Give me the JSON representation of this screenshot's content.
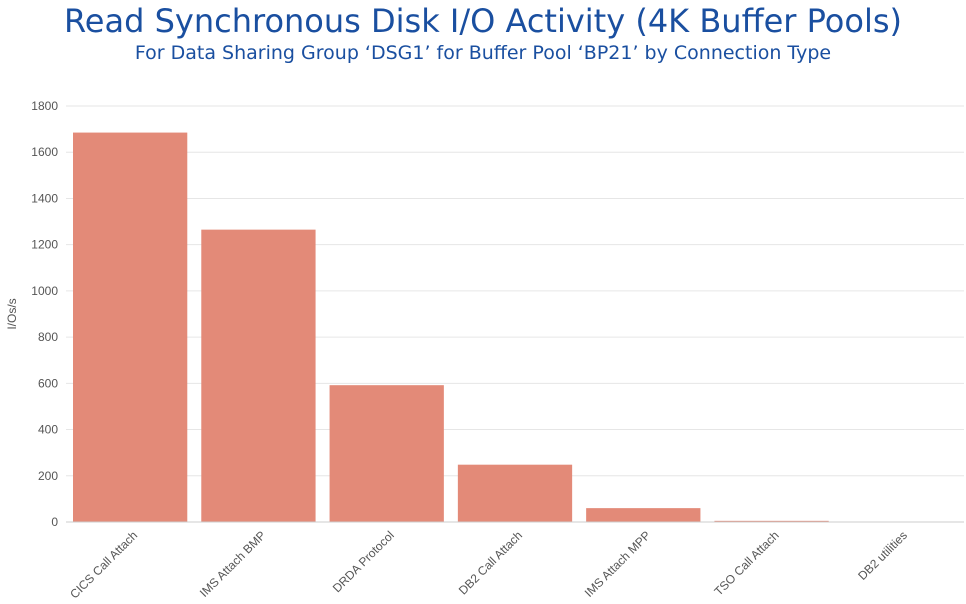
{
  "title": "Read Synchronous Disk I/O Activity (4K Buffer Pools)",
  "subtitle": "For Data Sharing Group ‘DSG1’ for Buffer Pool ‘BP21’ by Connection Type",
  "chart_data": {
    "type": "bar",
    "title": "Read Synchronous Disk I/O Activity (4K Buffer Pools)",
    "subtitle": "For Data Sharing Group ‘DSG1’ for Buffer Pool ‘BP21’ by Connection Type",
    "xlabel": "",
    "ylabel": "I/Os/s",
    "ylim": [
      0,
      1800
    ],
    "yticks": [
      "0",
      "200",
      "400",
      "600",
      "800",
      "1000",
      "1200",
      "1400",
      "1600",
      "1800"
    ],
    "grid": true,
    "bar_color": "#e38a78",
    "categories": [
      "CICS Call Attach",
      "IMS Attach BMP",
      "DRDA Protocol",
      "DB2 Call Attach",
      "IMS Attach MPP",
      "TSO Call Attach",
      "DB2 utilities"
    ],
    "values": [
      1685,
      1265,
      592,
      248,
      60,
      5,
      0
    ]
  }
}
